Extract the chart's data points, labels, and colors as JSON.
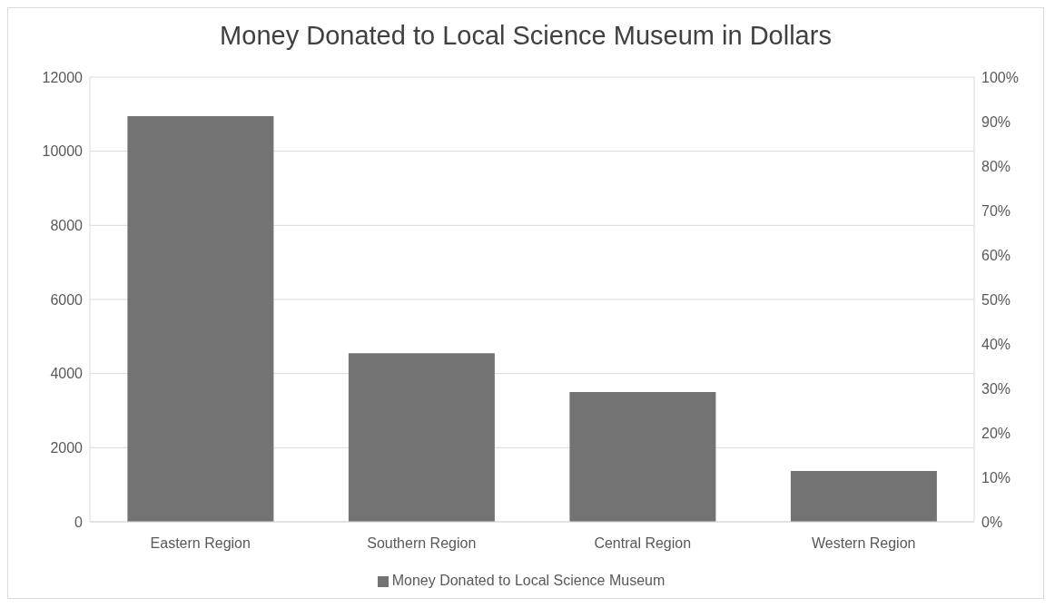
{
  "chart_data": {
    "type": "bar",
    "title": "Money Donated to Local Science Museum in Dollars",
    "categories": [
      "Eastern Region",
      "Southern Region",
      "Central Region",
      "Western Region"
    ],
    "series": [
      {
        "name": "Money Donated to Local Science Museum",
        "color": "#737373",
        "values": [
          10950,
          4550,
          3500,
          1370
        ]
      }
    ],
    "ylim": [
      0,
      12000
    ],
    "yticks": [
      0,
      2000,
      4000,
      6000,
      8000,
      10000,
      12000
    ],
    "y2lim": [
      0,
      100
    ],
    "y2ticks": [
      {
        "value": 0,
        "label": "0%"
      },
      {
        "value": 10,
        "label": "10%"
      },
      {
        "value": 20,
        "label": "20%"
      },
      {
        "value": 30,
        "label": "30%"
      },
      {
        "value": 40,
        "label": "40%"
      },
      {
        "value": 50,
        "label": "50%"
      },
      {
        "value": 60,
        "label": "60%"
      },
      {
        "value": 70,
        "label": "70%"
      },
      {
        "value": 80,
        "label": "80%"
      },
      {
        "value": 90,
        "label": "90%"
      },
      {
        "value": 100,
        "label": "100%"
      }
    ],
    "grid": "y",
    "legend": "bottom"
  }
}
